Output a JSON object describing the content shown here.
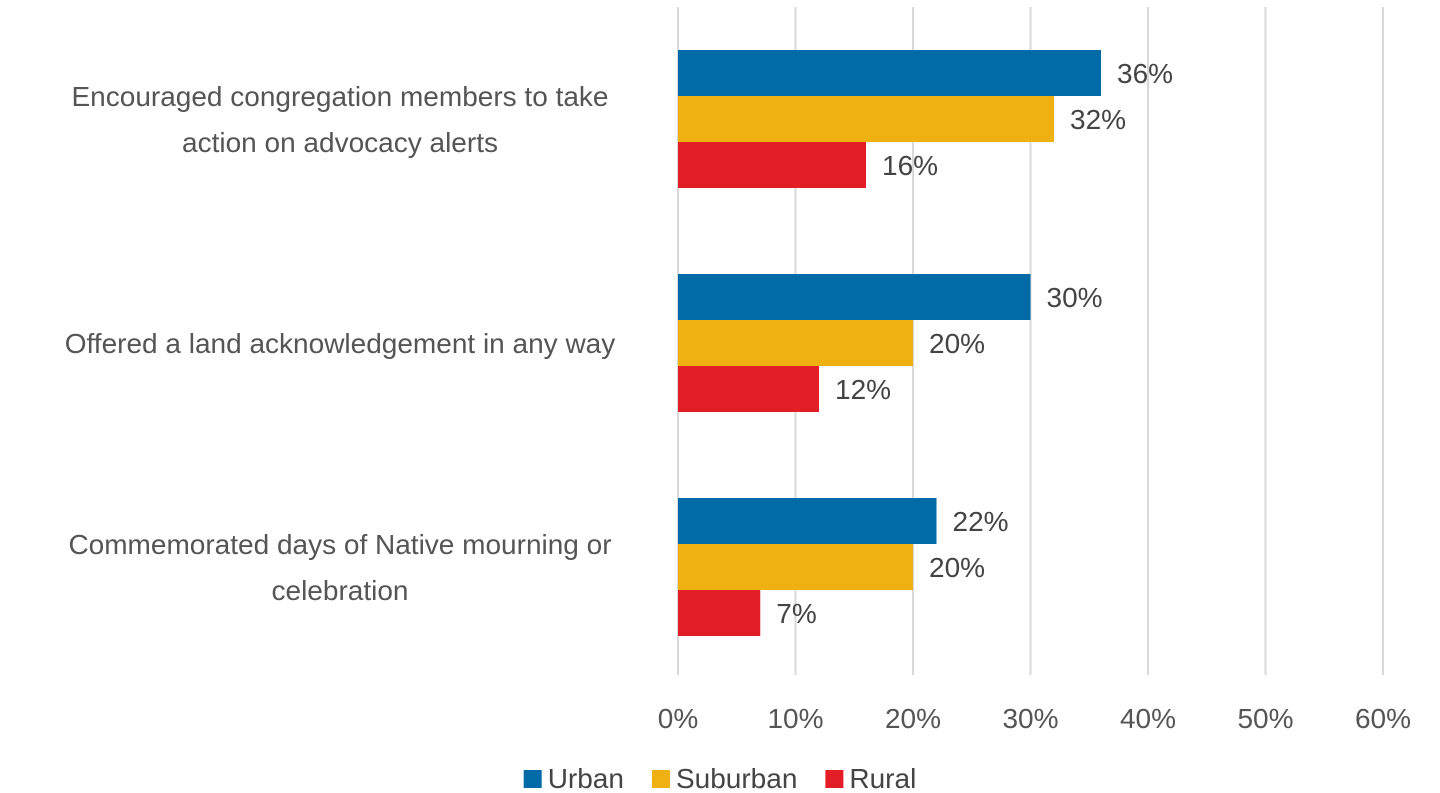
{
  "chart_data": {
    "type": "bar",
    "orientation": "horizontal",
    "categories": [
      [
        "Encouraged congregation members to take",
        "action on advocacy alerts"
      ],
      [
        "Offered a land acknowledgement in any way"
      ],
      [
        "Commemorated days of Native mourning or",
        "celebration"
      ]
    ],
    "series": [
      {
        "name": "Urban",
        "color": "#006BA6",
        "values": [
          36,
          30,
          22
        ],
        "labels": [
          "36%",
          "30%",
          "22%"
        ]
      },
      {
        "name": "Suburban",
        "color": "#EEB111",
        "values": [
          32,
          20,
          20
        ],
        "labels": [
          "32%",
          "20%",
          "20%"
        ]
      },
      {
        "name": "Rural",
        "color": "#E31E26",
        "values": [
          16,
          12,
          7
        ],
        "labels": [
          "16%",
          "12%",
          "7%"
        ]
      }
    ],
    "xlim": [
      0,
      60
    ],
    "x_ticks": [
      0,
      10,
      20,
      30,
      40,
      50,
      60
    ],
    "x_tick_labels": [
      "0%",
      "10%",
      "20%",
      "30%",
      "40%",
      "50%",
      "60%"
    ],
    "grid": "vertical",
    "legend": "bottom-center",
    "title": "",
    "xlabel": "",
    "ylabel": ""
  }
}
